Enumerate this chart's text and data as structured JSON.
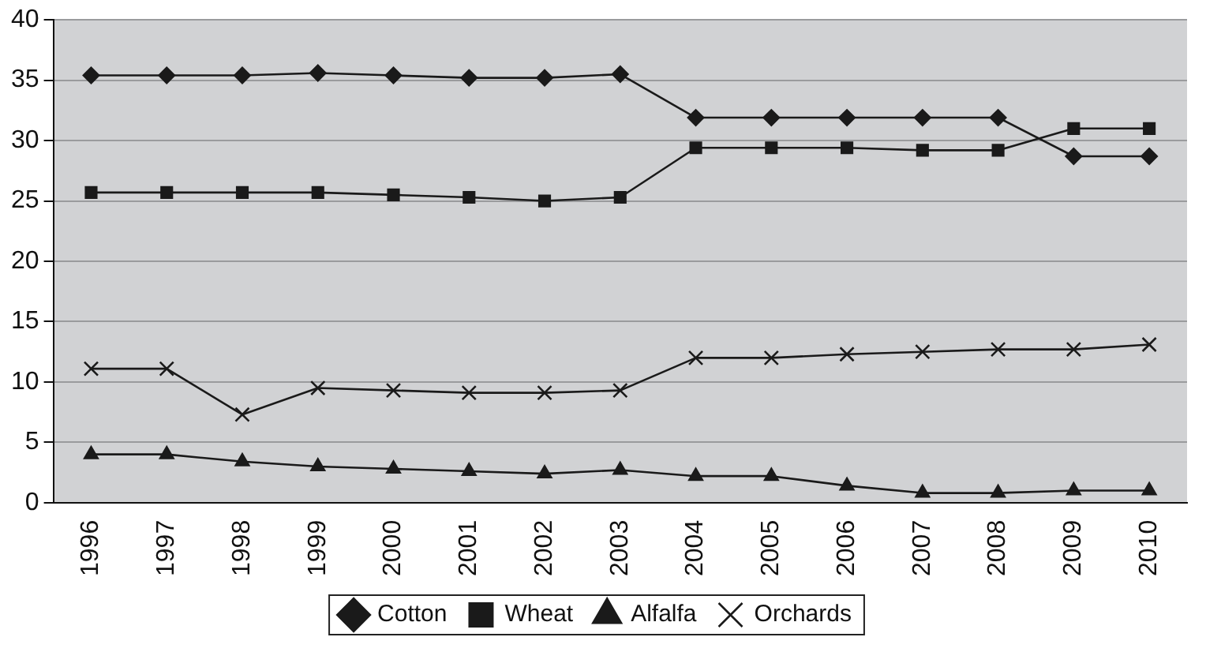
{
  "chart_data": {
    "type": "line",
    "categories": [
      "1996",
      "1997",
      "1998",
      "1999",
      "2000",
      "2001",
      "2002",
      "2003",
      "2004",
      "2005",
      "2006",
      "2007",
      "2008",
      "2009",
      "2010"
    ],
    "series": [
      {
        "name": "Cotton",
        "color": "#1a1a1a",
        "marker": "diamond",
        "values": [
          35.4,
          35.4,
          35.4,
          35.6,
          35.4,
          35.2,
          35.2,
          35.5,
          31.9,
          31.9,
          31.9,
          31.9,
          31.9,
          28.7,
          28.7
        ]
      },
      {
        "name": "Wheat",
        "color": "#1a1a1a",
        "marker": "square",
        "values": [
          25.7,
          25.7,
          25.7,
          25.7,
          25.5,
          25.3,
          25.0,
          25.3,
          29.4,
          29.4,
          29.4,
          29.2,
          29.2,
          31.0,
          31.0
        ]
      },
      {
        "name": "Alfalfa",
        "color": "#1a1a1a",
        "marker": "triangle",
        "values": [
          4.0,
          4.0,
          3.4,
          3.0,
          2.8,
          2.6,
          2.4,
          2.7,
          2.2,
          2.2,
          1.4,
          0.8,
          0.8,
          1.0,
          1.0
        ]
      },
      {
        "name": "Orchards",
        "color": "#1a1a1a",
        "marker": "cross",
        "values": [
          11.1,
          11.1,
          7.3,
          9.5,
          9.3,
          9.1,
          9.1,
          9.3,
          12.0,
          12.0,
          12.3,
          12.5,
          12.7,
          12.7,
          13.1
        ]
      }
    ],
    "ylim": [
      0,
      40
    ],
    "yticks": [
      0,
      5,
      10,
      15,
      20,
      25,
      30,
      35,
      40
    ],
    "grid": "y",
    "legend": "bottom",
    "line_style": "solid"
  }
}
